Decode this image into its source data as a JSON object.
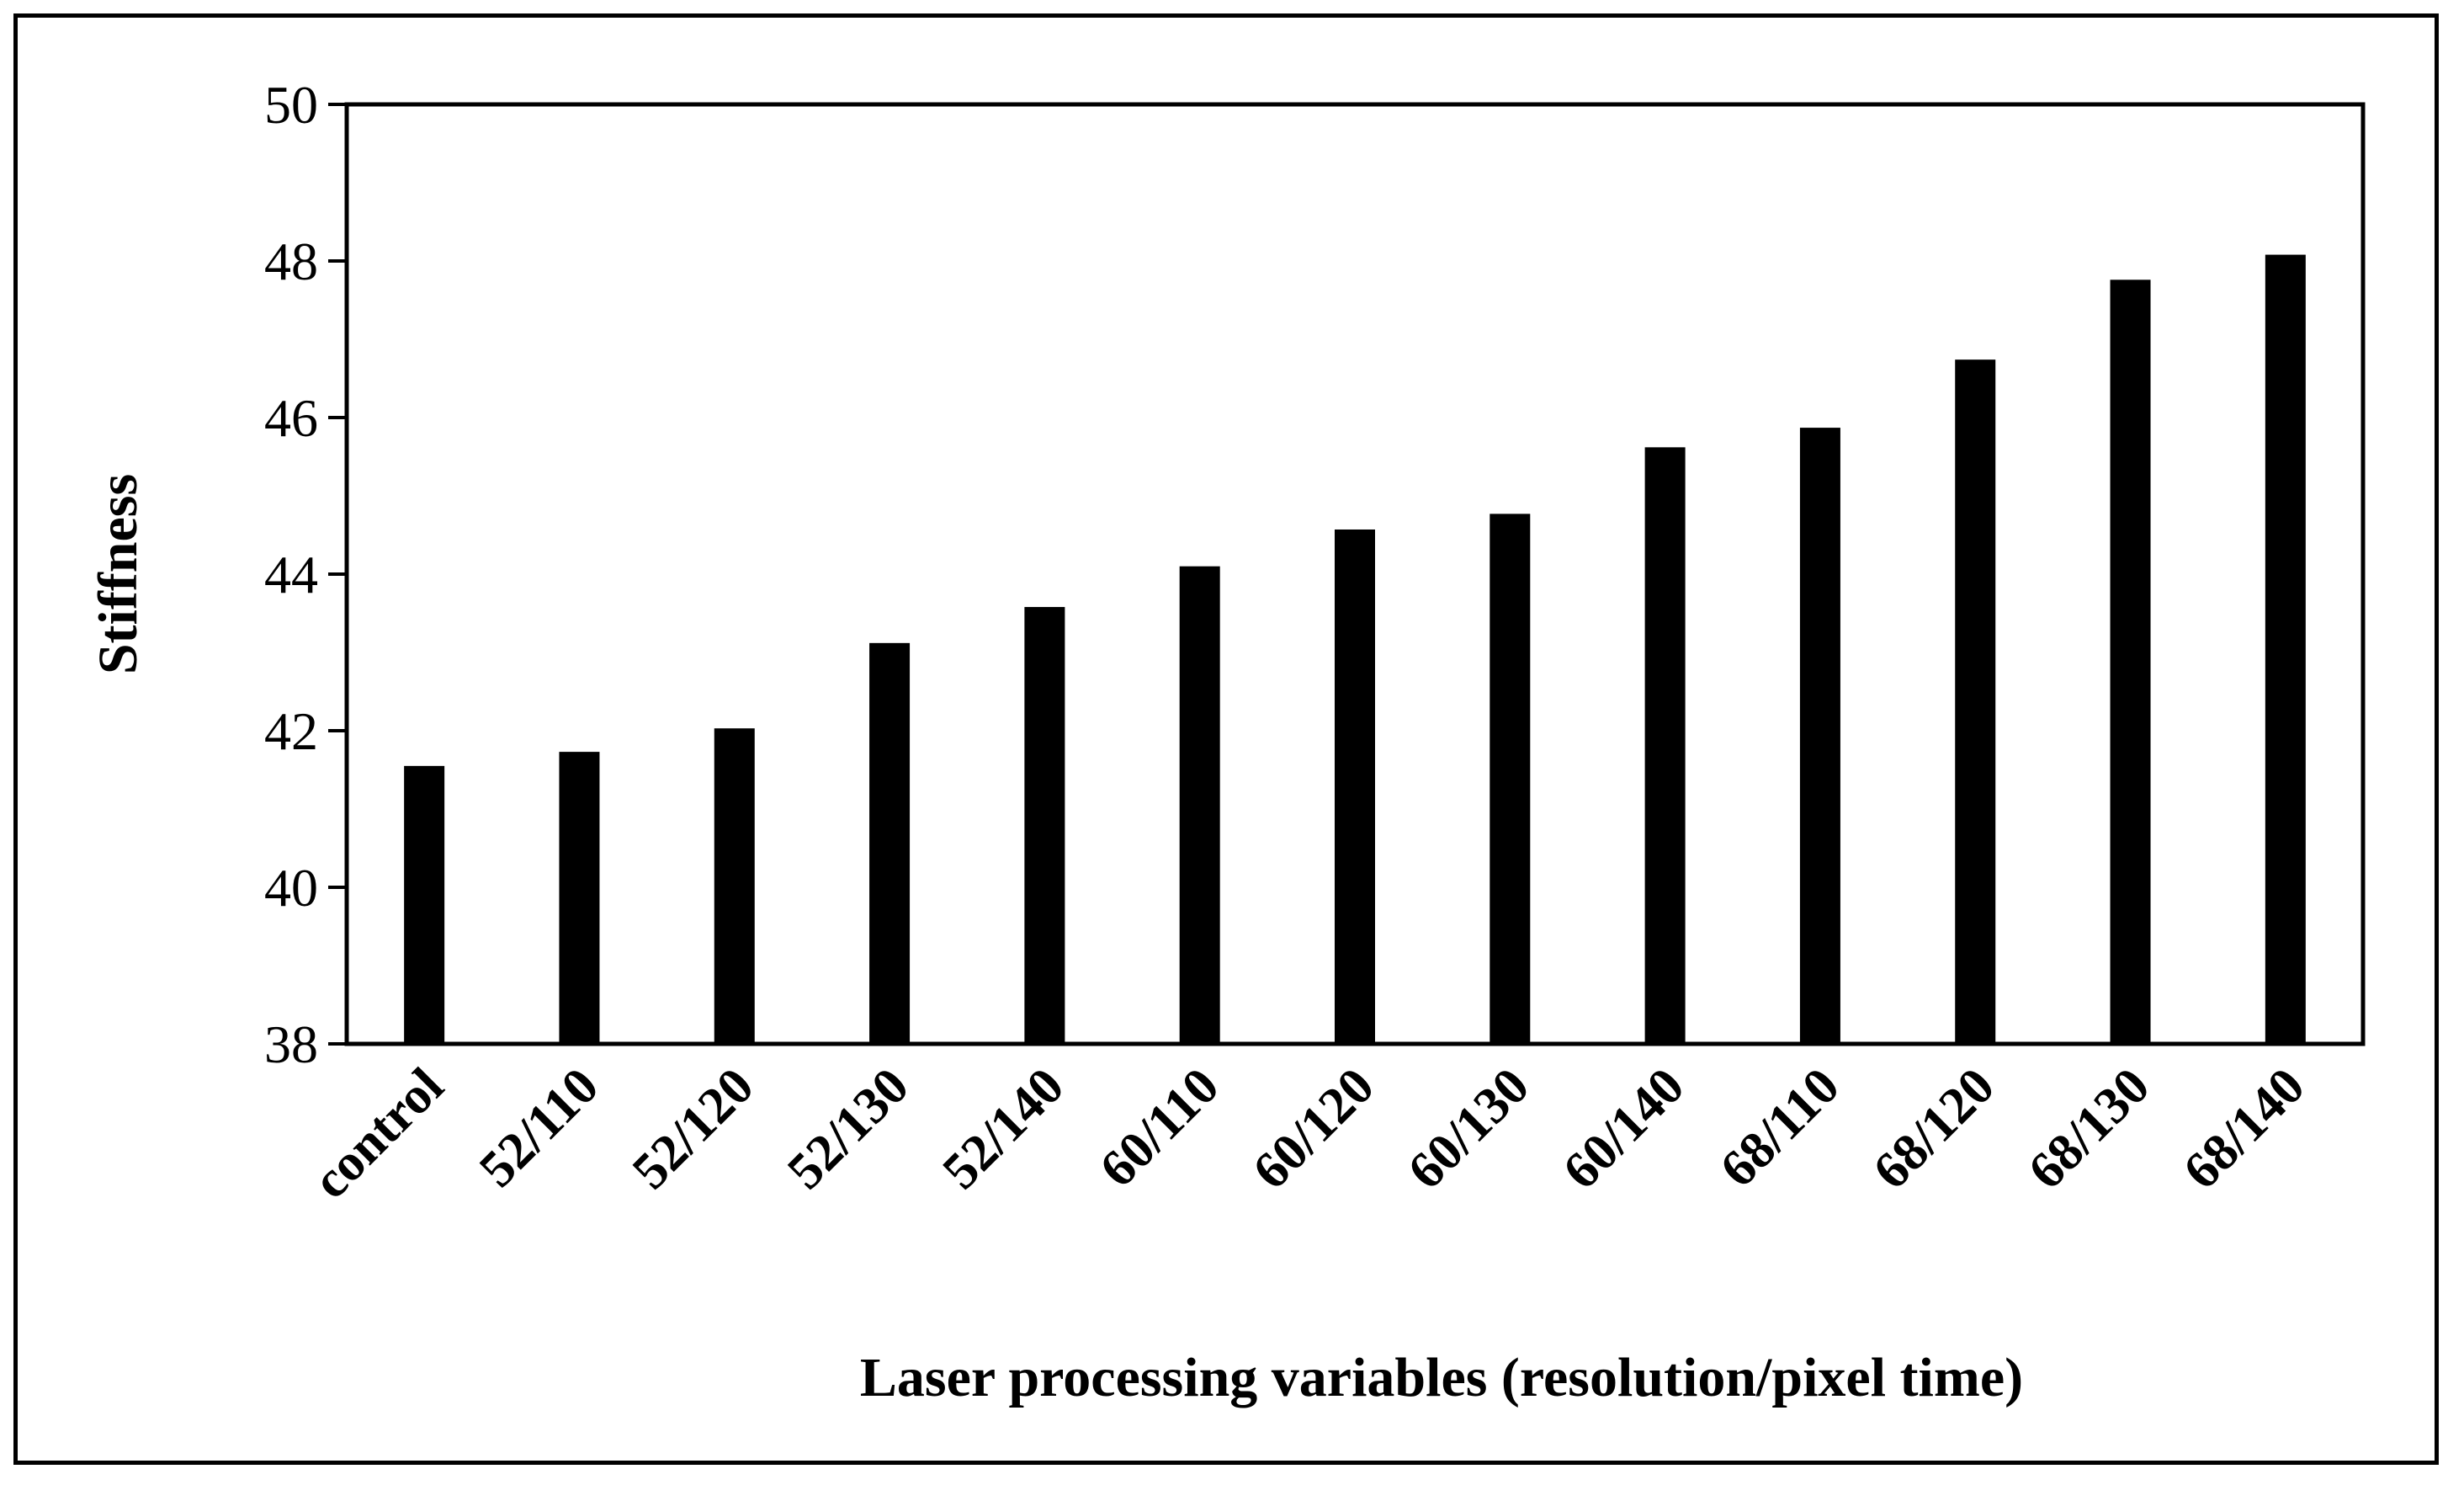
{
  "chart_data": {
    "type": "bar",
    "title": "",
    "xlabel": "Laser processing variables (resolution/pixel time)",
    "ylabel": "Stiffness",
    "categories": [
      "control",
      "52/110",
      "52/120",
      "52/130",
      "52/140",
      "60/110",
      "60/120",
      "60/130",
      "60/140",
      "68/110",
      "68/120",
      "68/130",
      "68/140"
    ],
    "values": [
      41.55,
      41.73,
      42.03,
      43.12,
      43.58,
      44.1,
      44.57,
      44.77,
      45.62,
      45.87,
      46.74,
      47.76,
      48.08
    ],
    "ylim": [
      38,
      50
    ],
    "yticks": [
      38,
      40,
      42,
      44,
      46,
      48,
      50
    ],
    "grid": false,
    "legend": "none",
    "bar_color": "#000000"
  }
}
